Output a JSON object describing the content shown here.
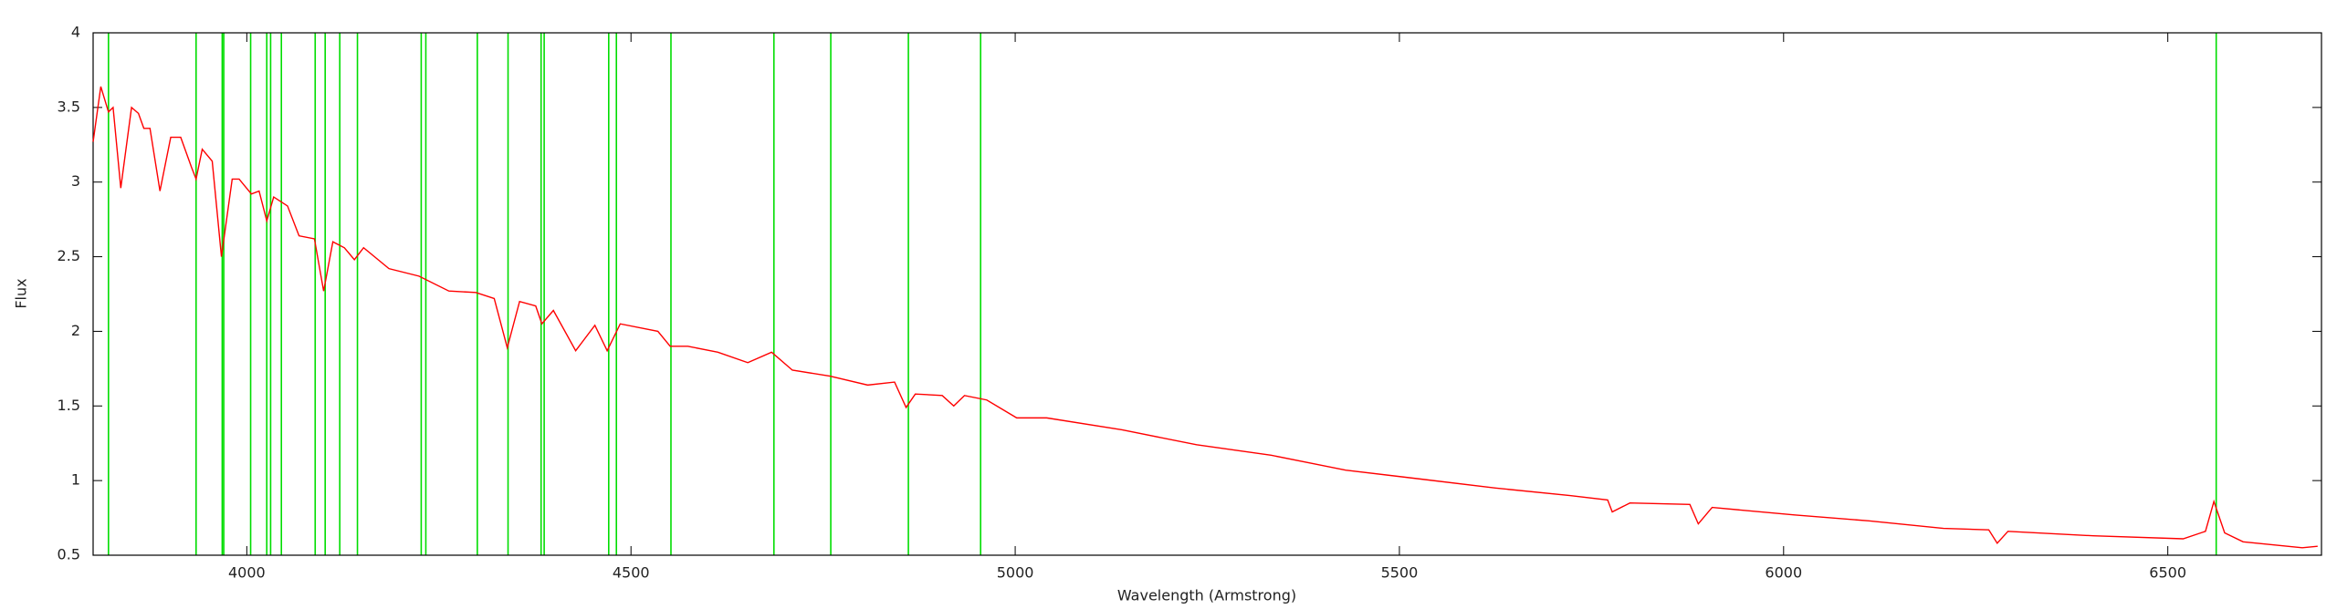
{
  "chart_data": {
    "type": "line",
    "xlabel": "Wavelength (Armstrong)",
    "ylabel": "Flux",
    "xlim": [
      3800,
      6700
    ],
    "xticks": [
      4000,
      4500,
      5000,
      5500,
      6000,
      6500
    ],
    "ylim": [
      0.5,
      4
    ],
    "yticks": [
      0.5,
      1,
      1.5,
      2,
      2.5,
      3,
      3.5,
      4
    ],
    "x": [
      3800,
      3810,
      3820,
      3826,
      3836,
      3850,
      3859,
      3866,
      3874,
      3887,
      3901,
      3914,
      3928,
      3934,
      3942,
      3955,
      3967,
      3981,
      3990,
      4006,
      4016,
      4026,
      4035,
      4053,
      4068,
      4088,
      4100,
      4112,
      4127,
      4140,
      4152,
      4185,
      4224,
      4263,
      4298,
      4322,
      4339,
      4355,
      4376,
      4384,
      4399,
      4428,
      4453,
      4469,
      4486,
      4535,
      4551,
      4574,
      4613,
      4652,
      4683,
      4710,
      4759,
      4808,
      4843,
      4858,
      4870,
      4905,
      4920,
      4934,
      4963,
      5002,
      5041,
      5139,
      5236,
      5333,
      5430,
      5528,
      5625,
      5722,
      5771,
      5777,
      5800,
      5878,
      5889,
      5907,
      6014,
      6111,
      6208,
      6267,
      6278,
      6292,
      6403,
      6520,
      6549,
      6560,
      6574,
      6598,
      6675,
      6695
    ],
    "series": [
      {
        "color": "#ff0000",
        "values": [
          3.27,
          3.64,
          3.47,
          3.5,
          2.96,
          3.5,
          3.46,
          3.36,
          3.36,
          2.94,
          3.3,
          3.3,
          3.1,
          3.02,
          3.22,
          3.14,
          2.5,
          3.02,
          3.02,
          2.92,
          2.94,
          2.74,
          2.9,
          2.84,
          2.64,
          2.62,
          2.27,
          2.6,
          2.56,
          2.48,
          2.56,
          2.42,
          2.37,
          2.27,
          2.26,
          2.22,
          1.89,
          2.2,
          2.17,
          2.05,
          2.14,
          1.87,
          2.04,
          1.87,
          2.05,
          2.0,
          1.9,
          1.9,
          1.86,
          1.79,
          1.86,
          1.74,
          1.7,
          1.64,
          1.66,
          1.49,
          1.58,
          1.57,
          1.5,
          1.57,
          1.54,
          1.42,
          1.42,
          1.34,
          1.24,
          1.17,
          1.07,
          1.01,
          0.95,
          0.9,
          0.87,
          0.79,
          0.85,
          0.84,
          0.71,
          0.82,
          0.77,
          0.73,
          0.68,
          0.67,
          0.58,
          0.66,
          0.63,
          0.61,
          0.66,
          0.86,
          0.65,
          0.59,
          0.55,
          0.56
        ]
      }
    ],
    "vlines": {
      "color": "#00dd00",
      "x": [
        3820,
        3934,
        3968,
        3970,
        4005,
        4026,
        4031,
        4045,
        4089,
        4102,
        4121,
        4144,
        4227,
        4233,
        4300,
        4340,
        4383,
        4387,
        4471,
        4481,
        4552,
        4686,
        4760,
        4861,
        4955,
        6563
      ]
    }
  }
}
